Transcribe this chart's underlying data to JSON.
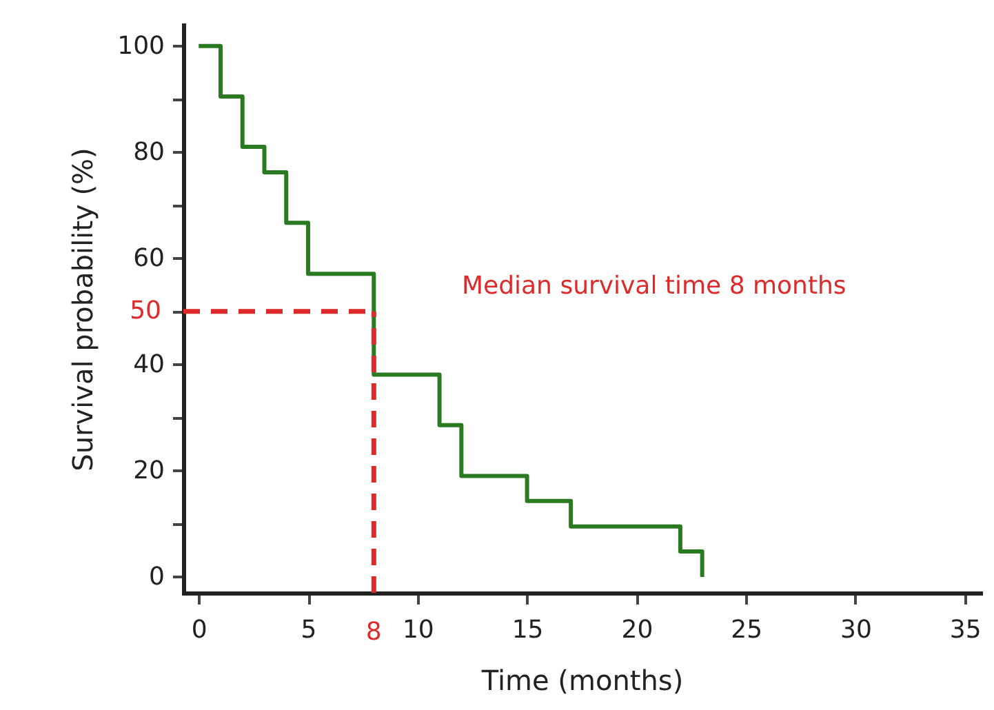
{
  "chart_data": {
    "type": "step",
    "xlabel": "Time (months)",
    "ylabel": "Survival probability (%)",
    "x": [
      0,
      1,
      2,
      3,
      4,
      5,
      8,
      11,
      12,
      15,
      17,
      22,
      23
    ],
    "series": [
      {
        "color": "#2a7a22",
        "values": [
          100,
          90.5,
          81,
          76.2,
          66.7,
          57.1,
          38.1,
          28.6,
          19,
          14.3,
          9.5,
          4.8,
          0
        ]
      }
    ],
    "xlim": [
      -0.7,
      35.7
    ],
    "xticks": [
      0,
      5,
      10,
      15,
      20,
      25,
      30,
      35
    ],
    "ylim": [
      -3,
      104
    ],
    "yticks": [
      0,
      {
        "value": 10,
        "label": null
      },
      20,
      {
        "value": 30,
        "label": null
      },
      40,
      {
        "value": 50,
        "label": null
      },
      60,
      {
        "value": 70,
        "label": null
      },
      80,
      {
        "value": 90,
        "label": null
      },
      100
    ],
    "ref_lines": [
      {
        "axis": "y",
        "value": 50,
        "label": "50",
        "color": "#dd2a2a",
        "line_style": "dashed"
      },
      {
        "axis": "x",
        "value": 8,
        "label": "8",
        "color": "#dd2a2a",
        "line_style": "dashed"
      }
    ],
    "annotations": [
      "Median survival time 8 months"
    ],
    "grid": false,
    "marker": "none",
    "line_style": "solid"
  }
}
